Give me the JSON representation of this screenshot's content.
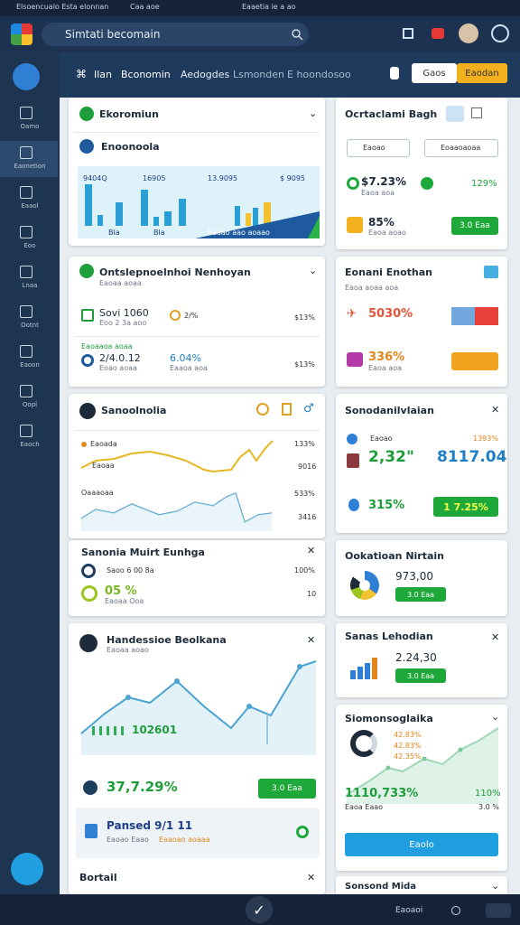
{
  "status_bar": {
    "left": "Elsoencualo Esta elonnan",
    "mid": "Caa aoe",
    "center": "Eaaetia ie a ao"
  },
  "header": {
    "search": "Simtati becomain"
  },
  "sidebar": [
    "Oamo",
    "Eaonetion",
    "Eaaol",
    "Eoo",
    "Lnaa",
    "Ootnt",
    "Eaoon",
    "Oopl",
    "Eaoch"
  ],
  "tabs": [
    "Ilan",
    "Bconomin",
    "Aedogdes",
    "Lsmonden",
    "E hoondosoo"
  ],
  "buttons": [
    "Gaos",
    "Eaodan"
  ],
  "left_cards": [
    {
      "title": "Ekoromiun",
      "subtitle": "Enoonoola",
      "labels": [
        "9404Q",
        "16905",
        "13.9095",
        "$ 9095",
        "Bla",
        "Bla",
        "Eaaao aao aoaao"
      ]
    },
    {
      "title": "Ontslepnoelnhoi Nenhoyan",
      "subtitle": "Eaoaa aoaa",
      "row1": "Sovi 1060",
      "row1_sub": "Eoo 2 3a aoo",
      "row1_mid": "2/%",
      "row1_right": "$13%",
      "section": "Eaoaaoa aoaa",
      "row2": "2/4.0.12",
      "row2_sub": "Eoao aoaa",
      "row2_mid": "6.04%",
      "row2_mid_sub": "Eaaoa aoa",
      "row2_right": "$13%"
    },
    {
      "title": "Sanoolnolia",
      "series1": "Eaoada",
      "series1_sub": "Eaoaa",
      "value1": "133%",
      "value1b": "9016",
      "series2": "Oaaaoaa",
      "value2": "533%",
      "value2b": "3416"
    },
    {
      "title": "Sanonia Muirt Eunhga",
      "row1": "Saoo 6 00 8a",
      "row1_right": "100%",
      "row2": "05 %",
      "row2_sub": "Eaoaa Ooa",
      "row2_right": "10"
    },
    {
      "title": "Handessioe Beolkana",
      "subtitle": "Eaoaa aoao",
      "chart_label": "102601",
      "big": "37,7.29%",
      "button": "3.0 Eaa",
      "promo": "Pansed 9/1 11",
      "promo_sub": "Eaoao Eaao",
      "promo_tag": "Eaaoao aoaaa",
      "footer": "Bortail"
    }
  ],
  "right_cards": [
    {
      "title": "Ocrtaclami Bagh",
      "select1": "Eaoao",
      "select2": "Eoaaoaoaa",
      "row1": "$7.23%",
      "row1_sub": "Eaoa aoa",
      "row1_right": "129%",
      "row2": "85%",
      "row2_sub": "Eaoa aoao",
      "button": "3.0 Eaa"
    },
    {
      "title": "Eonani Enothan",
      "subtitle": "Eaoa aoaa aoa",
      "row1": "5030%",
      "row2": "336%",
      "row2_sub": "Eaoa aoa"
    },
    {
      "title": "Sonodanilvlaian",
      "row1_sub": "Eaoao",
      "row1_right": "1393%",
      "big": "2,32\"",
      "big_right": "8117.04",
      "row2": "315%",
      "button": "1 7.25%"
    },
    {
      "title": "Ookatioan Nirtain",
      "value": "973,00",
      "button": "3.0 Eaa"
    },
    {
      "title": "Sanas Lehodian",
      "value": "2.24,30",
      "button": "3.0 Eaa"
    },
    {
      "title": "Siomonsoglaika",
      "labels": [
        "42.83%",
        "42.83%",
        "42.35%"
      ],
      "big": "1110,733%",
      "big_sub": "Eaoa Eaao",
      "right": "110%",
      "right_b": "3.0 %",
      "button": "Eaolo"
    },
    {
      "title": "Sonsond Mida"
    }
  ],
  "bottom_bar": {
    "right": "Eaoaoi"
  }
}
